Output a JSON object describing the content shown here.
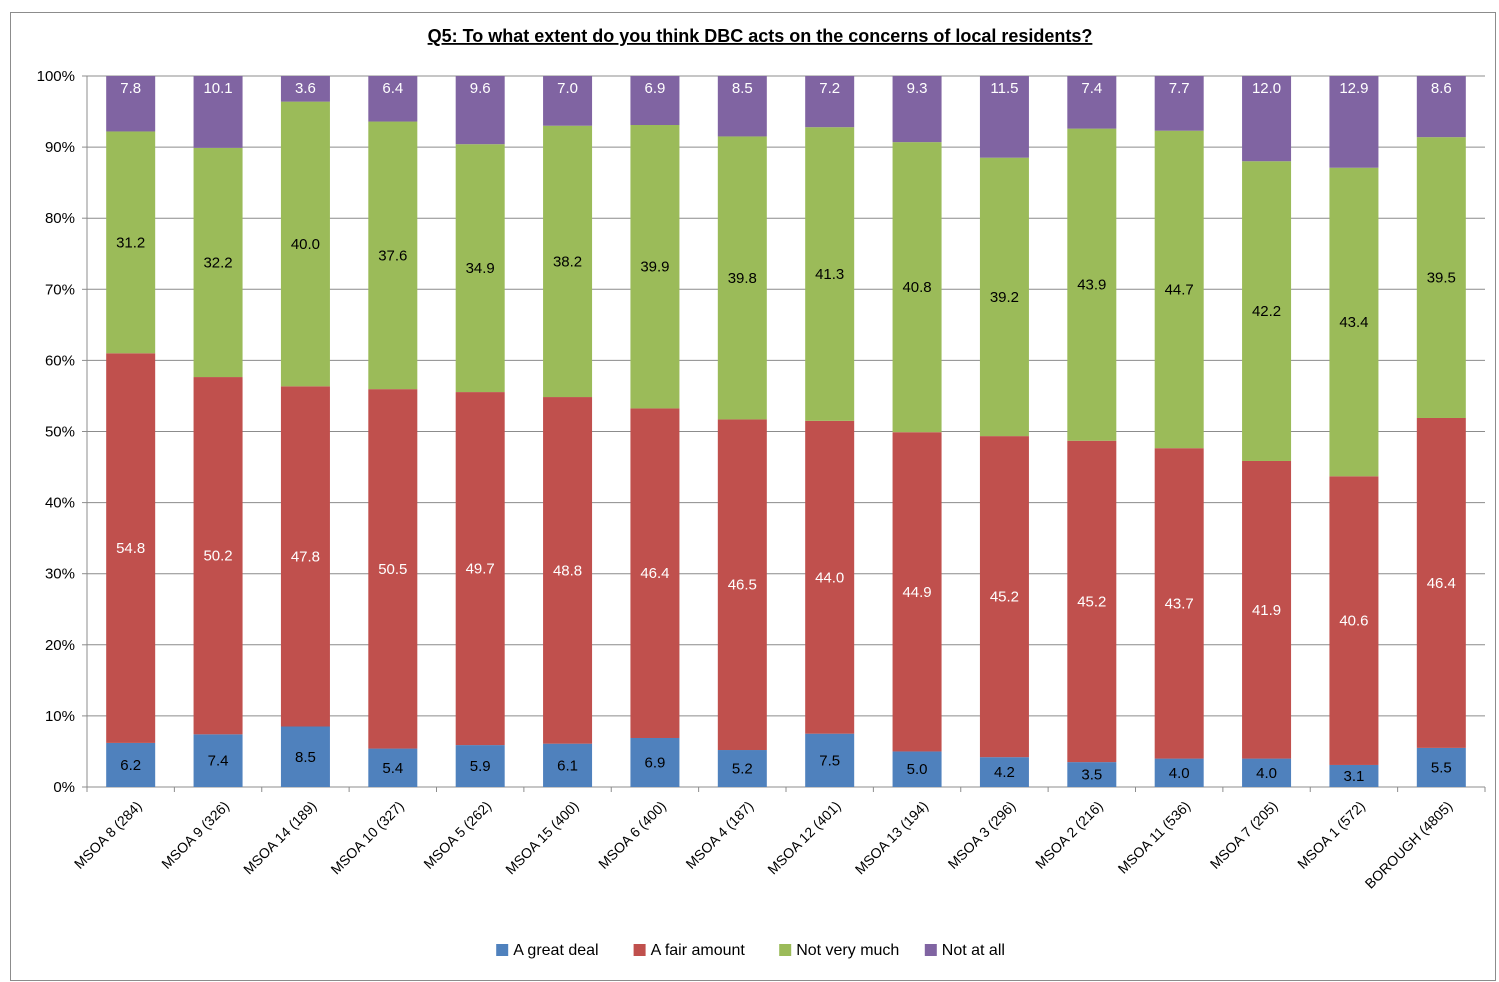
{
  "chart_data": {
    "type": "bar",
    "stacked": true,
    "percent_stacked": true,
    "title": "Q5: To what extent do you think DBC acts on the concerns of local residents?",
    "xlabel": "",
    "ylabel": "",
    "ylim": [
      0,
      100
    ],
    "y_ticks": [
      "0%",
      "10%",
      "20%",
      "30%",
      "40%",
      "50%",
      "60%",
      "70%",
      "80%",
      "90%",
      "100%"
    ],
    "grid": true,
    "legend_position": "bottom",
    "categories": [
      "MSOA 8 (284)",
      "MSOA 9 (326)",
      "MSOA 14 (189)",
      "MSOA 10 (327)",
      "MSOA 5 (262)",
      "MSOA 15 (400)",
      "MSOA 6 (400)",
      "MSOA 4 (187)",
      "MSOA 12 (401)",
      "MSOA 13 (194)",
      "MSOA 3 (296)",
      "MSOA 2 (216)",
      "MSOA 11 (536)",
      "MSOA 7 (205)",
      "MSOA 1 (572)",
      "BOROUGH (4805)"
    ],
    "series": [
      {
        "name": "A great deal",
        "color": "#4f81bd",
        "label_color": "#000000",
        "values": [
          6.2,
          7.4,
          8.5,
          5.4,
          5.9,
          6.1,
          6.9,
          5.2,
          7.5,
          5.0,
          4.2,
          3.5,
          4.0,
          4.0,
          3.1,
          5.5
        ]
      },
      {
        "name": "A fair amount",
        "color": "#c0504d",
        "label_color": "#ffffff",
        "values": [
          54.8,
          50.2,
          47.8,
          50.5,
          49.7,
          48.8,
          46.4,
          46.5,
          44.0,
          44.9,
          45.2,
          45.2,
          43.7,
          41.9,
          40.6,
          46.4
        ]
      },
      {
        "name": "Not very much",
        "color": "#9bbb59",
        "label_color": "#000000",
        "values": [
          31.2,
          32.2,
          40.0,
          37.6,
          34.9,
          38.2,
          39.9,
          39.8,
          41.3,
          40.8,
          39.2,
          43.9,
          44.7,
          42.2,
          43.4,
          39.5
        ]
      },
      {
        "name": "Not at all",
        "color": "#8064a2",
        "label_color": "#ffffff",
        "values": [
          7.8,
          10.1,
          3.6,
          6.4,
          9.6,
          7.0,
          6.9,
          8.5,
          7.2,
          9.3,
          11.5,
          7.4,
          7.7,
          12.0,
          12.9,
          8.6
        ]
      }
    ]
  }
}
